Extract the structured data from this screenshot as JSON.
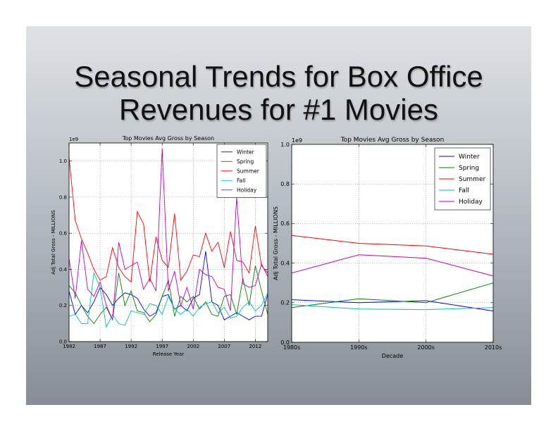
{
  "slide": {
    "title_line1": "Seasonal Trends for Box Office",
    "title_line2": "Revenues for #1 Movies"
  },
  "chart_data": [
    {
      "type": "line",
      "title": "Top Movies Avg Gross by Season",
      "xlabel": "Release Year",
      "ylabel": "Adj Total Gross - MILLIONS",
      "offset_text": "1e9",
      "xlim": [
        1982,
        2014
      ],
      "ylim": [
        0.0,
        1.1
      ],
      "x_ticks": [
        1982,
        1987,
        1992,
        1997,
        2002,
        2007,
        2012
      ],
      "y_ticks": [
        0.0,
        0.2,
        0.4,
        0.6,
        0.8,
        1.0
      ],
      "y_tick_labels": [
        "0.0",
        "0.2",
        "0.4",
        "0.6",
        "0.8",
        "1.0"
      ],
      "grid": true,
      "legend_position": "upper right",
      "x": [
        1982,
        1983,
        1984,
        1985,
        1986,
        1987,
        1988,
        1989,
        1990,
        1991,
        1992,
        1993,
        1994,
        1995,
        1996,
        1997,
        1998,
        1999,
        2000,
        2001,
        2002,
        2003,
        2004,
        2005,
        2006,
        2007,
        2008,
        2009,
        2010,
        2011,
        2012,
        2013,
        2014
      ],
      "series": [
        {
          "name": "Winter",
          "color": "#0000ff",
          "values": [
            0.28,
            0.15,
            0.2,
            0.16,
            0.22,
            0.3,
            0.26,
            0.2,
            0.24,
            0.27,
            0.26,
            0.24,
            0.18,
            0.14,
            0.16,
            0.25,
            0.26,
            0.18,
            0.2,
            0.17,
            0.24,
            0.26,
            0.5,
            0.22,
            0.2,
            0.12,
            0.14,
            0.16,
            0.14,
            0.12,
            0.14,
            0.14,
            0.26
          ]
        },
        {
          "name": "Spring",
          "color": "#008000",
          "values": [
            0.31,
            0.27,
            0.2,
            0.14,
            0.1,
            0.15,
            0.19,
            0.12,
            0.38,
            0.2,
            0.28,
            0.17,
            0.16,
            0.11,
            0.15,
            0.25,
            0.34,
            0.14,
            0.25,
            0.22,
            0.25,
            0.18,
            0.22,
            0.15,
            0.14,
            0.25,
            0.26,
            0.15,
            0.35,
            0.2,
            0.42,
            0.28,
            0.15
          ]
        },
        {
          "name": "Summer",
          "color": "#ff0000",
          "values": [
            1.02,
            0.67,
            0.57,
            0.49,
            0.4,
            0.34,
            0.36,
            0.52,
            0.41,
            0.36,
            0.33,
            0.72,
            0.65,
            0.33,
            0.58,
            0.45,
            0.41,
            0.71,
            0.34,
            0.39,
            0.48,
            0.47,
            0.6,
            0.5,
            0.55,
            0.41,
            0.61,
            0.45,
            0.44,
            0.38,
            0.64,
            0.42,
            0.38
          ]
        },
        {
          "name": "Fall",
          "color": "#00bfbf",
          "values": [
            0.14,
            0.15,
            0.1,
            0.1,
            0.38,
            0.3,
            0.08,
            0.15,
            0.1,
            0.09,
            0.17,
            0.16,
            0.15,
            0.21,
            0.2,
            0.15,
            0.25,
            0.18,
            0.15,
            0.18,
            0.14,
            0.19,
            0.21,
            0.22,
            0.16,
            0.19,
            0.13,
            0.14,
            0.19,
            0.22,
            0.17,
            0.2,
            0.27
          ]
        },
        {
          "name": "Holiday",
          "color": "#bf00bf",
          "values": [
            0.46,
            0.24,
            0.56,
            0.29,
            0.25,
            0.33,
            0.2,
            0.12,
            0.55,
            0.4,
            0.42,
            0.44,
            0.29,
            0.35,
            0.28,
            1.07,
            0.28,
            0.39,
            0.2,
            0.3,
            0.18,
            0.4,
            0.37,
            0.36,
            0.3,
            0.29,
            0.17,
            0.8,
            0.32,
            0.3,
            0.31,
            0.43,
            0.36
          ]
        }
      ]
    },
    {
      "type": "line",
      "title": "Top Movies Avg Gross by Season",
      "xlabel": "Decade",
      "ylabel": "Adj Total Gross - MILLIONS",
      "offset_text": "1e9",
      "categories": [
        "1980s",
        "1990s",
        "2000s",
        "2010s"
      ],
      "ylim": [
        0.0,
        1.0
      ],
      "y_ticks": [
        0.0,
        0.2,
        0.4,
        0.6,
        0.8,
        1.0
      ],
      "y_tick_labels": [
        "0.0",
        "0.2",
        "0.4",
        "0.6",
        "0.8",
        "1.0"
      ],
      "grid": true,
      "legend_position": "upper right",
      "series": [
        {
          "name": "Winter",
          "color": "#0000ff",
          "values": [
            0.215,
            0.2,
            0.21,
            0.158
          ]
        },
        {
          "name": "Spring",
          "color": "#008000",
          "values": [
            0.175,
            0.22,
            0.2,
            0.3
          ]
        },
        {
          "name": "Summer",
          "color": "#ff0000",
          "values": [
            0.54,
            0.5,
            0.487,
            0.445
          ]
        },
        {
          "name": "Fall",
          "color": "#00bfbf",
          "values": [
            0.19,
            0.168,
            0.165,
            0.175
          ]
        },
        {
          "name": "Holiday",
          "color": "#bf00bf",
          "values": [
            0.35,
            0.442,
            0.425,
            0.335
          ]
        }
      ]
    }
  ]
}
